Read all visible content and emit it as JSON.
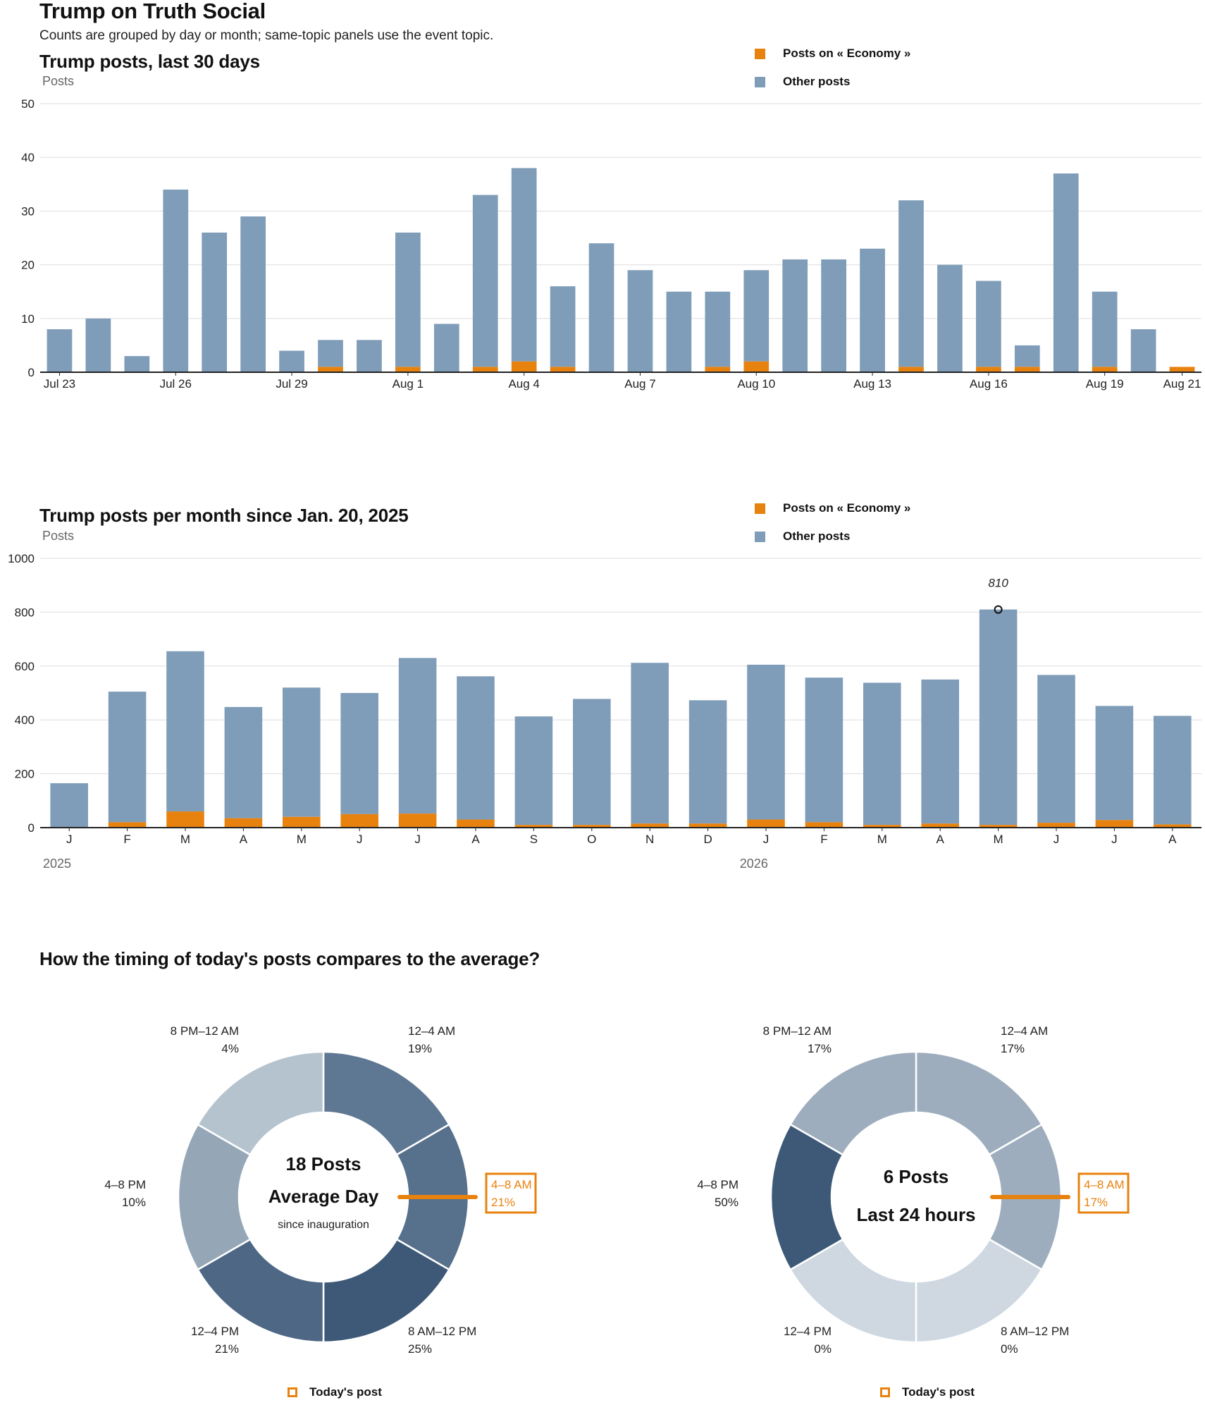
{
  "header": {
    "title": "Trump on Truth Social",
    "subtitle": "Counts are grouped by day or month; same-topic panels use the event topic."
  },
  "colors": {
    "topic": "#e8820f",
    "other": "#7f9db9",
    "axis": "#222222",
    "grid": "#dddddd"
  },
  "legend": {
    "topic": "Posts on « Economy »",
    "other": "Other posts"
  },
  "chart_data": [
    {
      "type": "bar",
      "stacked": true,
      "title": "Trump posts, last 30 days",
      "ylabel": "Posts",
      "ylim": [
        0,
        50
      ],
      "yticks": [
        0,
        10,
        20,
        30,
        40,
        50
      ],
      "grid": true,
      "legend_position": "top-right",
      "categories": [
        "Jul 23",
        "Jul 24",
        "Jul 25",
        "Jul 26",
        "Jul 27",
        "Jul 28",
        "Jul 29",
        "Jul 30",
        "Jul 31",
        "Aug 1",
        "Aug 2",
        "Aug 3",
        "Aug 4",
        "Aug 5",
        "Aug 6",
        "Aug 7",
        "Aug 8",
        "Aug 9",
        "Aug 10",
        "Aug 11",
        "Aug 12",
        "Aug 13",
        "Aug 14",
        "Aug 15",
        "Aug 16",
        "Aug 17",
        "Aug 18",
        "Aug 19",
        "Aug 20",
        "Aug 21"
      ],
      "tick_labels": [
        "Jul 23",
        "",
        "",
        "Jul 26",
        "",
        "",
        "Jul 29",
        "",
        "",
        "Aug 1",
        "",
        "",
        "Aug 4",
        "",
        "",
        "Aug 7",
        "",
        "",
        "Aug 10",
        "",
        "",
        "Aug 13",
        "",
        "",
        "Aug 16",
        "",
        "",
        "Aug 19",
        "",
        "Aug 21"
      ],
      "series": [
        {
          "name": "Posts on « Economy »",
          "values": [
            0,
            0,
            0,
            0,
            0,
            0,
            0,
            1,
            0,
            1,
            0,
            1,
            2,
            1,
            0,
            0,
            0,
            1,
            2,
            0,
            0,
            0,
            1,
            0,
            1,
            1,
            0,
            1,
            0,
            1
          ]
        },
        {
          "name": "Other posts",
          "values": [
            8,
            10,
            3,
            34,
            26,
            29,
            4,
            5,
            6,
            25,
            9,
            32,
            36,
            15,
            24,
            19,
            15,
            14,
            17,
            21,
            21,
            23,
            31,
            20,
            16,
            4,
            37,
            14,
            8,
            0
          ]
        }
      ]
    },
    {
      "type": "bar",
      "stacked": true,
      "title": "Trump posts per month since Jan. 20, 2025",
      "ylabel": "Posts",
      "ylim": [
        0,
        1000
      ],
      "yticks": [
        0,
        200,
        400,
        600,
        800,
        1000
      ],
      "grid": true,
      "legend_position": "top-right",
      "categories": [
        "J",
        "F",
        "M",
        "A",
        "M",
        "J",
        "J",
        "A",
        "S",
        "O",
        "N",
        "D",
        "J",
        "F",
        "M",
        "A",
        "M",
        "J",
        "J",
        "A"
      ],
      "year_labels": [
        {
          "label": "2025",
          "index": 0
        },
        {
          "label": "2026",
          "index": 12
        }
      ],
      "annotation": {
        "index": 16,
        "label": "810"
      },
      "series": [
        {
          "name": "Posts on « Economy »",
          "values": [
            0,
            20,
            60,
            35,
            40,
            50,
            52,
            30,
            10,
            10,
            15,
            15,
            30,
            20,
            10,
            15,
            10,
            18,
            28,
            12
          ]
        },
        {
          "name": "Other posts",
          "values": [
            165,
            485,
            595,
            413,
            480,
            450,
            578,
            532,
            403,
            468,
            597,
            458,
            575,
            537,
            528,
            535,
            800,
            549,
            424,
            403
          ]
        }
      ]
    },
    {
      "type": "pie",
      "donut": true,
      "title": "How the timing of today's posts compares to the average?",
      "center": {
        "line1": "18 Posts",
        "line2": "Average Day",
        "line3": "since inauguration"
      },
      "highlight": "4–8 AM",
      "slices": [
        {
          "label": "12–4 AM",
          "pct": "19%",
          "shade": "#5e7792"
        },
        {
          "label": "4–8 AM",
          "pct": "21%",
          "shade": "#57708b"
        },
        {
          "label": "8 AM–12 PM",
          "pct": "25%",
          "shade": "#3d5977"
        },
        {
          "label": "12–4 PM",
          "pct": "21%",
          "shade": "#4d6785"
        },
        {
          "label": "4–8 PM",
          "pct": "10%",
          "shade": "#95a7b7"
        },
        {
          "label": "8 PM–12 AM",
          "pct": "4%",
          "shade": "#b5c3cf"
        }
      ]
    },
    {
      "type": "pie",
      "donut": true,
      "center": {
        "line1": "6 Posts",
        "line2": "Last 24 hours"
      },
      "highlight": "4–8 AM",
      "slices": [
        {
          "label": "12–4 AM",
          "pct": "17%",
          "shade": "#9eadbd"
        },
        {
          "label": "4–8 AM",
          "pct": "17%",
          "shade": "#9eadbd"
        },
        {
          "label": "8 AM–12 PM",
          "pct": "0%",
          "shade": "#cfd8e1"
        },
        {
          "label": "12–4 PM",
          "pct": "0%",
          "shade": "#cfd8e1"
        },
        {
          "label": "4–8 PM",
          "pct": "50%",
          "shade": "#3d5977"
        },
        {
          "label": "8 PM–12 AM",
          "pct": "17%",
          "shade": "#9eadbd"
        }
      ]
    }
  ],
  "today_legend": "Today's post"
}
